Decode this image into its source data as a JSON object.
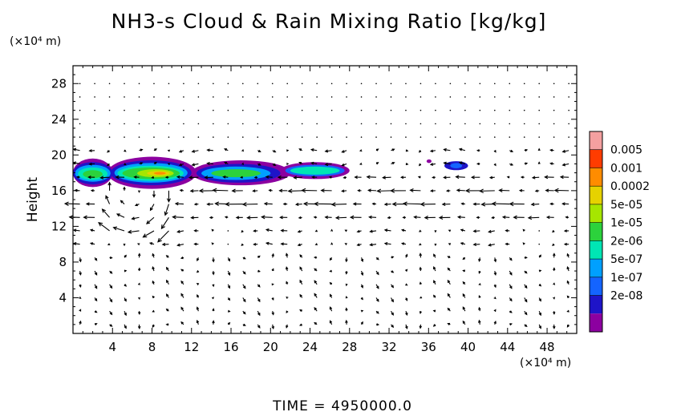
{
  "chart_data": {
    "type": "heatmap",
    "title": "NH3-s Cloud & Rain Mixing Ratio [kg/kg]",
    "xlabel": "",
    "ylabel": "Height",
    "x_unit": "(×10⁴ m)",
    "y_unit": "(×10⁴ m)",
    "xlim": [
      0,
      51
    ],
    "ylim": [
      0,
      30
    ],
    "x_ticks": [
      4,
      8,
      12,
      16,
      20,
      24,
      28,
      32,
      36,
      40,
      44,
      48
    ],
    "y_ticks": [
      4,
      8,
      12,
      16,
      20,
      24,
      28
    ],
    "colorbar": {
      "levels": [
        "0.005",
        "0.001",
        "0.0002",
        "5e-05",
        "1e-05",
        "2e-06",
        "5e-07",
        "1e-07",
        "2e-08"
      ],
      "colors": [
        "#f4a0a0",
        "#ff3c00",
        "#ff8c00",
        "#e6d200",
        "#a6e600",
        "#2cd23c",
        "#00e6b4",
        "#00a0ff",
        "#1464ff",
        "#1e14c8",
        "#8c00a0"
      ]
    },
    "cloud_regions": [
      {
        "x": [
          0,
          28
        ],
        "y": [
          16.2,
          19.6
        ],
        "peak": "0.0002",
        "location": "x 6-11 near height 17.5-18.5"
      },
      {
        "x": [
          37.5,
          40
        ],
        "y": [
          18.2,
          19.4
        ],
        "peak": "1e-07"
      }
    ],
    "wind_field": "vector arrows on regular grid; strong westward flow near heights 13-17, circulation near x 4-10, heights 11-17"
  },
  "time_label": "TIME  =  4950000.0"
}
